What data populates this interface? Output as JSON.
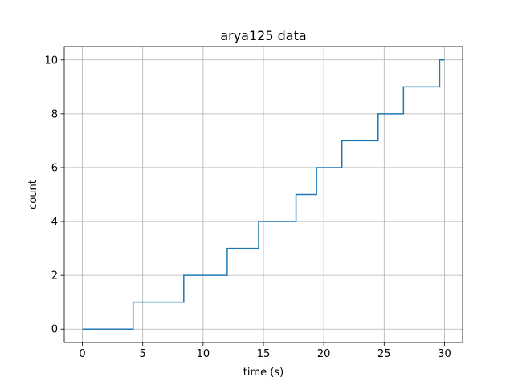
{
  "chart_data": {
    "type": "line",
    "drawstyle": "steps-post",
    "title": "arya125 data",
    "xlabel": "time (s)",
    "ylabel": "count",
    "xlim": [
      -1.5,
      31.5
    ],
    "ylim": [
      -0.5,
      10.5
    ],
    "xticks": [
      0,
      5,
      10,
      15,
      20,
      25,
      30
    ],
    "yticks": [
      0,
      2,
      4,
      6,
      8,
      10
    ],
    "grid": true,
    "color": "#1f77b4",
    "series": [
      {
        "x": [
          0,
          4.2,
          8.4,
          12.0,
          14.6,
          17.7,
          19.4,
          21.5,
          24.5,
          26.6,
          29.6,
          30.0
        ],
        "y": [
          0,
          1,
          2,
          3,
          4,
          5,
          6,
          7,
          8,
          9,
          10,
          10
        ]
      }
    ]
  }
}
